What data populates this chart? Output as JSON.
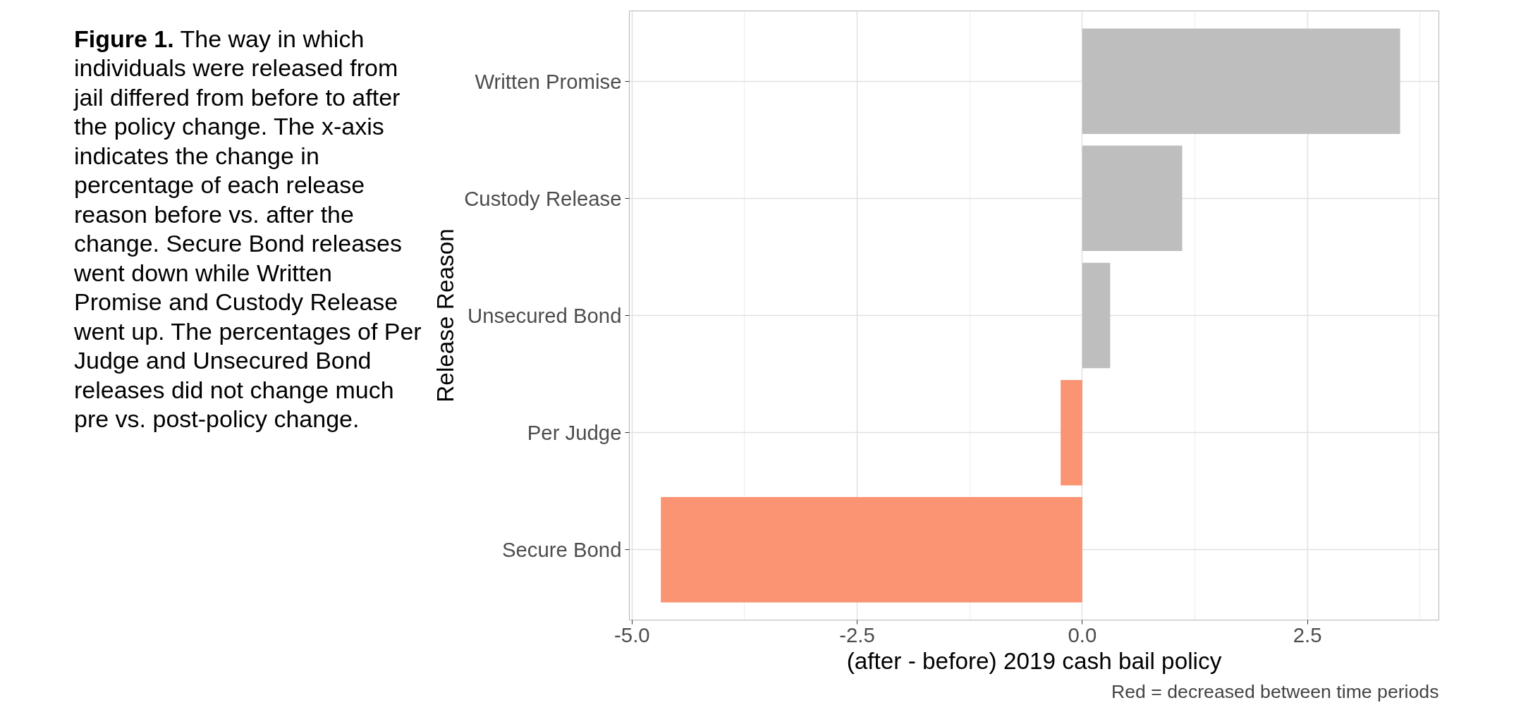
{
  "chart_data": {
    "type": "bar",
    "orientation": "horizontal",
    "categories": [
      "Written Promise",
      "Custody Release",
      "Unsecured Bond",
      "Per Judge",
      "Secure Bond"
    ],
    "values": [
      3.53,
      1.11,
      0.31,
      -0.24,
      -4.68
    ],
    "colors": [
      "#bebebe",
      "#bebebe",
      "#bebebe",
      "#fb9473",
      "#fb9473"
    ],
    "xlim": [
      -5.03,
      3.96
    ],
    "xticks": [
      {
        "value": -5,
        "label": "-5.0"
      },
      {
        "value": -2.5,
        "label": "-2.5"
      },
      {
        "value": 0,
        "label": "0.0"
      },
      {
        "value": 2.5,
        "label": "2.5"
      }
    ],
    "xlabel": "(after - before) 2019 cash bail policy",
    "ylabel": "Release Reason",
    "grid": true,
    "annotations": [
      "Red = decreased between time periods",
      "Figure 1. The way in which individuals were released from jail differed from before to after the policy change.  The x-axis indicates the change in percentage of each release reason before vs. after the change. Secure Bond releases went down while Written Promise and Custody Release went up. The percentages of Per Judge and Unsecured Bond releases did not change much pre vs. post-policy change."
    ]
  }
}
